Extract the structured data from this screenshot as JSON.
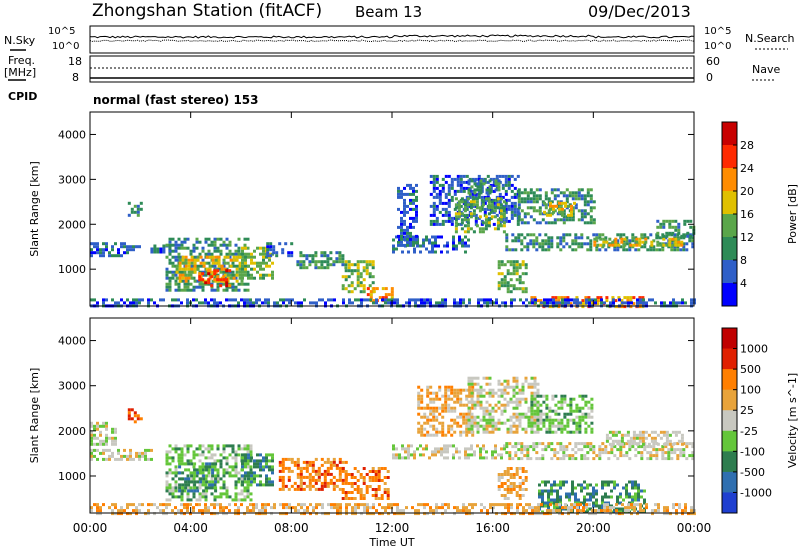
{
  "header": {
    "station": "Zhongshan Station (fitACF)",
    "beam": "Beam 13",
    "date": "09/Dec/2013"
  },
  "labels": {
    "n_sky": "N.Sky",
    "n_search": "N.Search",
    "freq": "Freq.",
    "mhz": "[MHz]",
    "nave": "Nave",
    "cpid": "CPID",
    "mode": "normal (fast stereo) 153"
  },
  "small_axes": {
    "sky_left": [
      "10^5",
      "10^0"
    ],
    "sky_right": [
      "10^5",
      "10^0"
    ],
    "freq_left": [
      "18",
      "8"
    ],
    "nave_right": [
      "60",
      "0"
    ]
  },
  "chart_data": [
    {
      "type": "heatmap",
      "name": "power",
      "ylabel": "Slant Range [km]",
      "xlabel": "",
      "xlim": [
        "00:00",
        "24:00"
      ],
      "ylim": [
        180,
        4500
      ],
      "yticks": [
        1000,
        2000,
        3000,
        4000
      ],
      "xticks": [
        "00:00",
        "04:00",
        "08:00",
        "12:00",
        "16:00",
        "20:00",
        "00:00"
      ],
      "colorbar": {
        "label": "Power [dB]",
        "ticks": [
          "4",
          "8",
          "12",
          "16",
          "20",
          "24",
          "28"
        ],
        "colors": [
          "#0000ff",
          "#2f5fc8",
          "#2e8b57",
          "#5aa64a",
          "#e0c000",
          "#ff8c00",
          "#ff2a00",
          "#c80000"
        ]
      },
      "regions": [
        {
          "t": [
            0.0,
            2.0
          ],
          "r": [
            1300,
            1600
          ],
          "lvl": 1
        },
        {
          "t": [
            1.5,
            2.0
          ],
          "r": [
            2200,
            2500
          ],
          "lvl": 2
        },
        {
          "t": [
            2.4,
            3.2
          ],
          "r": [
            1400,
            1550
          ],
          "lvl": 1
        },
        {
          "t": [
            3.0,
            6.3
          ],
          "r": [
            500,
            1700
          ],
          "lvl": 2
        },
        {
          "t": [
            3.4,
            6.0
          ],
          "r": [
            700,
            1300
          ],
          "lvl": 4
        },
        {
          "t": [
            4.3,
            5.6
          ],
          "r": [
            650,
            1000
          ],
          "lvl": 6
        },
        {
          "t": [
            6.0,
            7.2
          ],
          "r": [
            800,
            1500
          ],
          "lvl": 3
        },
        {
          "t": [
            7.0,
            8.0
          ],
          "r": [
            1300,
            1600
          ],
          "lvl": 1
        },
        {
          "t": [
            8.2,
            10.2
          ],
          "r": [
            1000,
            1400
          ],
          "lvl": 2
        },
        {
          "t": [
            10.0,
            11.2
          ],
          "r": [
            500,
            1200
          ],
          "lvl": 3
        },
        {
          "t": [
            11.0,
            12.0
          ],
          "r": [
            300,
            600
          ],
          "lvl": 5
        },
        {
          "t": [
            12.0,
            15.0
          ],
          "r": [
            1400,
            1750
          ],
          "lvl": 1
        },
        {
          "t": [
            12.2,
            13.0
          ],
          "r": [
            1500,
            2900
          ],
          "lvl": 1
        },
        {
          "t": [
            13.5,
            17.0
          ],
          "r": [
            2000,
            3100
          ],
          "lvl": 1
        },
        {
          "t": [
            14.5,
            16.5
          ],
          "r": [
            1800,
            2600
          ],
          "lvl": 3
        },
        {
          "t": [
            15.0,
            16.2
          ],
          "r": [
            2700,
            3000
          ],
          "lvl": 2
        },
        {
          "t": [
            16.2,
            17.3
          ],
          "r": [
            500,
            1200
          ],
          "lvl": 3
        },
        {
          "t": [
            17.0,
            20.0
          ],
          "r": [
            2000,
            2800
          ],
          "lvl": 2
        },
        {
          "t": [
            18.0,
            19.2
          ],
          "r": [
            2200,
            2500
          ],
          "lvl": 4
        },
        {
          "t": [
            16.5,
            24.0
          ],
          "r": [
            1450,
            1800
          ],
          "lvl": 2
        },
        {
          "t": [
            20.0,
            23.5
          ],
          "r": [
            1500,
            1700
          ],
          "lvl": 4
        },
        {
          "t": [
            22.5,
            24.0
          ],
          "r": [
            1700,
            2100
          ],
          "lvl": 2
        },
        {
          "t": [
            17.5,
            22.0
          ],
          "r": [
            180,
            400
          ],
          "lvl": 5
        },
        {
          "t": [
            0.0,
            24.0
          ],
          "r": [
            180,
            350
          ],
          "lvl": 1
        }
      ]
    },
    {
      "type": "heatmap",
      "name": "velocity",
      "ylabel": "Slant Range [km]",
      "xlabel": "Time UT",
      "xlim": [
        "00:00",
        "24:00"
      ],
      "ylim": [
        180,
        4500
      ],
      "yticks": [
        1000,
        2000,
        3000,
        4000
      ],
      "xticks": [
        "00:00",
        "04:00",
        "08:00",
        "12:00",
        "16:00",
        "20:00",
        "00:00"
      ],
      "colorbar": {
        "label": "Velocity [m s^-1]",
        "ticks": [
          "1000",
          "500",
          "100",
          "25",
          "-25",
          "-100",
          "-500",
          "-1000"
        ],
        "colors": [
          "#1f3fd0",
          "#2f6fb0",
          "#2e7d4f",
          "#64c63a",
          "#c8c8c0",
          "#e8a33a",
          "#ff7f00",
          "#e02000",
          "#c00000"
        ]
      },
      "regions": [
        {
          "t": [
            0.0,
            2.5
          ],
          "r": [
            1400,
            1600
          ],
          "lvl": 4
        },
        {
          "t": [
            0.0,
            1.0
          ],
          "r": [
            1700,
            2200
          ],
          "lvl": 4
        },
        {
          "t": [
            1.5,
            2.0
          ],
          "r": [
            2200,
            2500
          ],
          "lvl": 6
        },
        {
          "t": [
            3.0,
            6.4
          ],
          "r": [
            500,
            1700
          ],
          "lvl": 3
        },
        {
          "t": [
            3.5,
            5.0
          ],
          "r": [
            700,
            1300
          ],
          "lvl": 2
        },
        {
          "t": [
            6.0,
            7.2
          ],
          "r": [
            800,
            1500
          ],
          "lvl": 2
        },
        {
          "t": [
            7.5,
            10.2
          ],
          "r": [
            700,
            1400
          ],
          "lvl": 6
        },
        {
          "t": [
            10.0,
            11.8
          ],
          "r": [
            500,
            1200
          ],
          "lvl": 6
        },
        {
          "t": [
            12.0,
            16.5
          ],
          "r": [
            1400,
            1700
          ],
          "lvl": 4
        },
        {
          "t": [
            13.0,
            15.2
          ],
          "r": [
            1900,
            3000
          ],
          "lvl": 5
        },
        {
          "t": [
            15.0,
            17.8
          ],
          "r": [
            2000,
            3200
          ],
          "lvl": 4
        },
        {
          "t": [
            16.2,
            17.3
          ],
          "r": [
            500,
            1200
          ],
          "lvl": 5
        },
        {
          "t": [
            17.5,
            20.0
          ],
          "r": [
            2000,
            2800
          ],
          "lvl": 3
        },
        {
          "t": [
            16.5,
            24.0
          ],
          "r": [
            1400,
            1750
          ],
          "lvl": 4
        },
        {
          "t": [
            20.5,
            23.5
          ],
          "r": [
            1700,
            2000
          ],
          "lvl": 4
        },
        {
          "t": [
            17.8,
            22.0
          ],
          "r": [
            180,
            900
          ],
          "lvl": 2
        },
        {
          "t": [
            0.0,
            24.0
          ],
          "r": [
            180,
            400
          ],
          "lvl": 5
        }
      ]
    }
  ]
}
